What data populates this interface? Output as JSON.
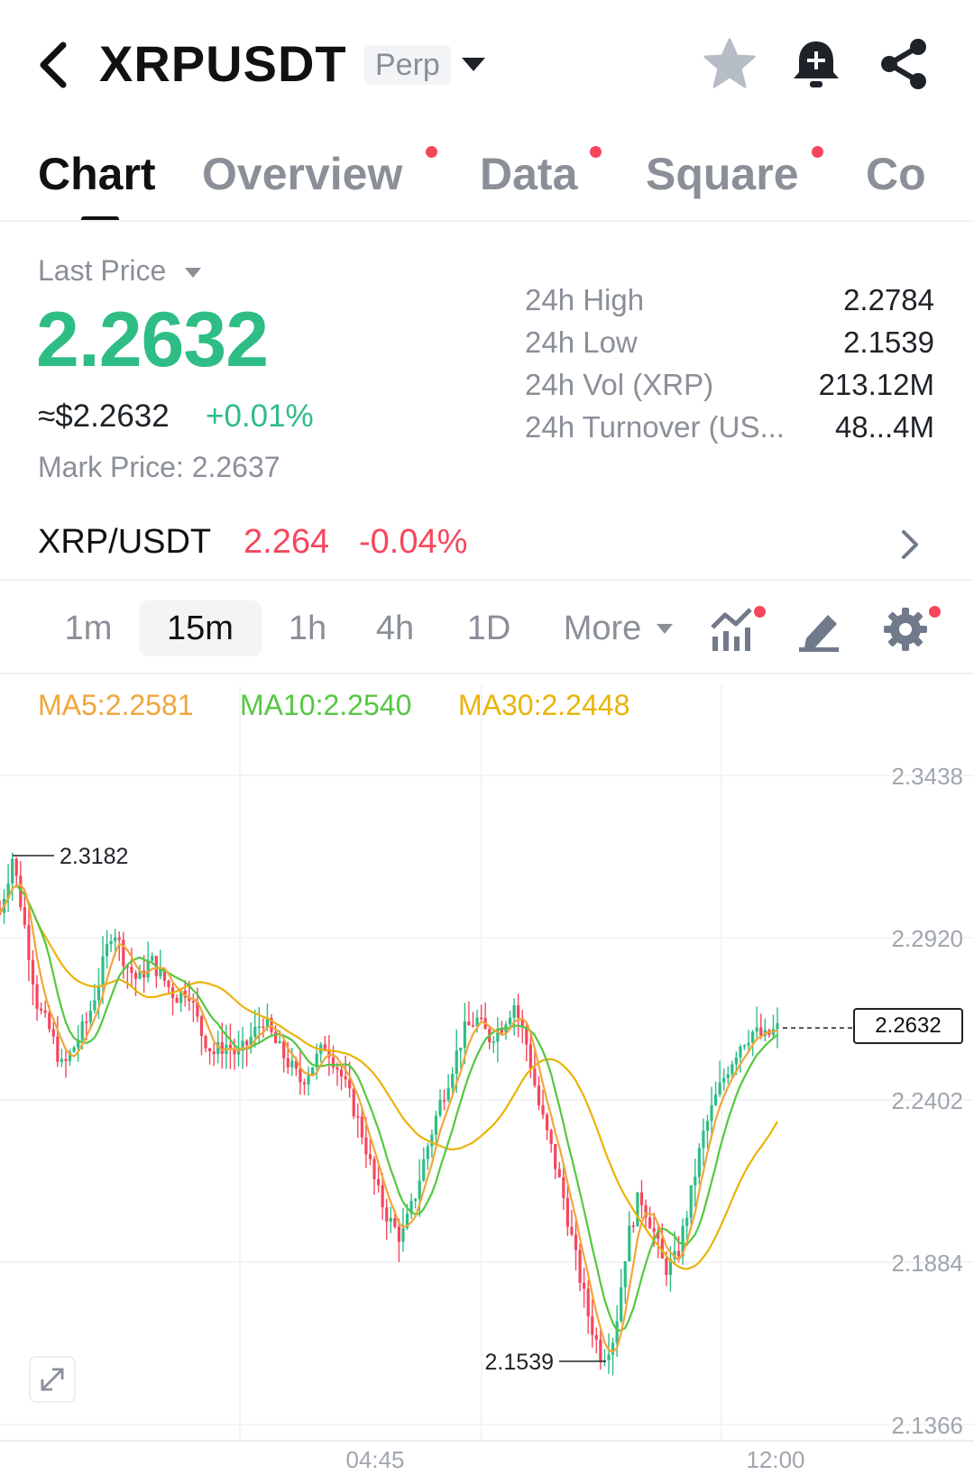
{
  "header": {
    "symbol": "XRPUSDT",
    "contract_type": "Perp",
    "icons": [
      "back-arrow-icon",
      "star-icon",
      "bell-plus-icon",
      "share-icon"
    ]
  },
  "tabs": [
    {
      "label": "Chart",
      "active": true,
      "dot": false
    },
    {
      "label": "Overview",
      "active": false,
      "dot": true
    },
    {
      "label": "Data",
      "active": false,
      "dot": true
    },
    {
      "label": "Square",
      "active": false,
      "dot": true
    },
    {
      "label": "Co",
      "active": false,
      "dot": false
    }
  ],
  "price": {
    "label": "Last Price",
    "last": "2.2632",
    "usd": "≈$2.2632",
    "change": "+0.01%",
    "mark": "Mark Price:  2.2637"
  },
  "stats": [
    {
      "label": "24h High",
      "value": "2.2784"
    },
    {
      "label": "24h Low",
      "value": "2.1539"
    },
    {
      "label": "24h Vol (XRP)",
      "value": "213.12M"
    },
    {
      "label": "24h Turnover (US...",
      "value": "48...4M"
    }
  ],
  "spot": {
    "pair": "XRP/USDT",
    "price": "2.264",
    "change": "-0.04%"
  },
  "intervals": {
    "items": [
      "1m",
      "15m",
      "1h",
      "4h",
      "1D"
    ],
    "active": "15m",
    "more_label": "More"
  },
  "ma_legend": {
    "ma5": "MA5:2.2581",
    "ma10": "MA10:2.2540",
    "ma30": "MA30:2.2448"
  },
  "colors": {
    "up": "#2ebd85",
    "down": "#f6465d",
    "ma5": "#f0a63a",
    "ma10": "#54c840",
    "ma30": "#eab308"
  },
  "chart_data": {
    "type": "candlestick",
    "interval": "15m",
    "y_ticks": [
      "2.3438",
      "2.2920",
      "2.2402",
      "2.1884",
      "2.1366"
    ],
    "x_ticks": [
      "04:45",
      "12:00"
    ],
    "ylim": [
      2.1366,
      2.3438
    ],
    "high_label": "2.3182",
    "low_label": "2.1539",
    "current_price": "2.2632",
    "close_path": [
      2.3,
      2.318,
      2.295,
      2.27,
      2.262,
      2.25,
      2.258,
      2.266,
      2.28,
      2.296,
      2.284,
      2.278,
      2.285,
      2.279,
      2.273,
      2.276,
      2.262,
      2.255,
      2.258,
      2.254,
      2.26,
      2.266,
      2.258,
      2.252,
      2.246,
      2.252,
      2.258,
      2.25,
      2.24,
      2.228,
      2.212,
      2.202,
      2.196,
      2.208,
      2.224,
      2.238,
      2.25,
      2.262,
      2.266,
      2.26,
      2.264,
      2.271,
      2.258,
      2.238,
      2.224,
      2.208,
      2.188,
      2.17,
      2.158,
      2.165,
      2.195,
      2.21,
      2.2,
      2.186,
      2.19,
      2.208,
      2.228,
      2.24,
      2.25,
      2.258,
      2.262,
      2.26,
      2.263
    ]
  }
}
